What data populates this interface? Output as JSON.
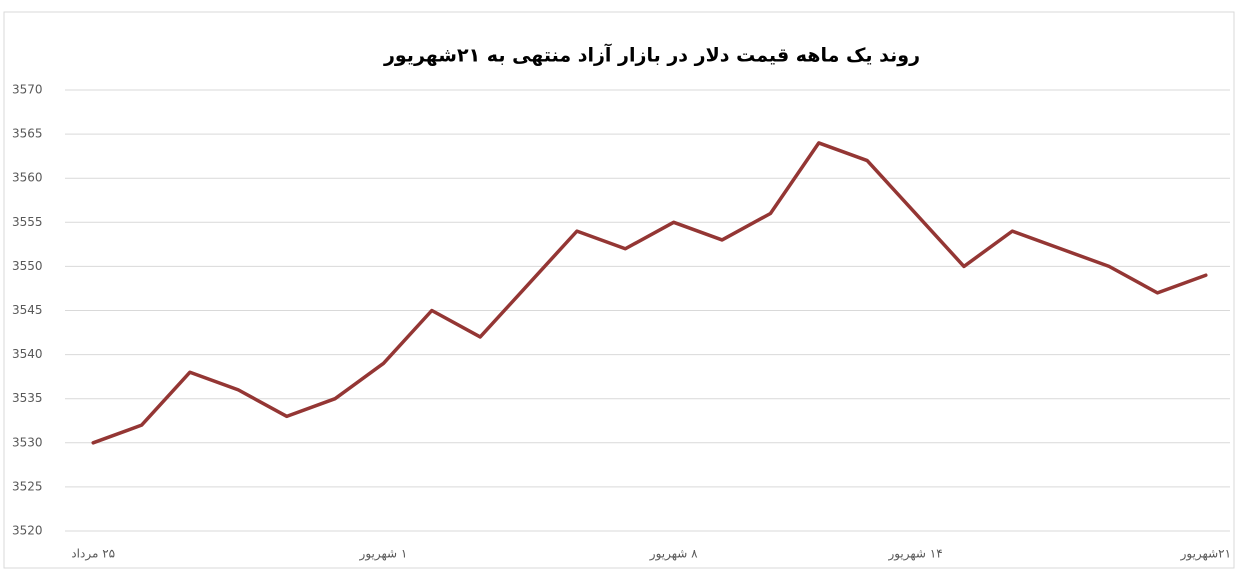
{
  "chart_data": {
    "type": "line",
    "title": "روند یک ماهه قیمت دلار در بازار آزاد منتهی به ۲۱شهریور",
    "categories": [
      "۲۵ مرداد",
      null,
      null,
      null,
      null,
      null,
      "۱ شهریور",
      null,
      null,
      null,
      null,
      null,
      "۸ شهریور",
      null,
      null,
      null,
      null,
      "۱۴ شهریور",
      null,
      null,
      null,
      null,
      null,
      "۲۱شهریور"
    ],
    "series": [
      {
        "name": "قیمت دلار",
        "color": "#943634",
        "values": [
          3530,
          3532,
          3538,
          3536,
          3533,
          3535,
          3539,
          3545,
          3542,
          3548,
          3554,
          3552,
          3555,
          3553,
          3556,
          3564,
          3562,
          3556,
          3550,
          3554,
          3552,
          3550,
          3547,
          3549
        ]
      }
    ],
    "ylim": [
      3520,
      3570
    ],
    "yticks": [
      3520,
      3525,
      3530,
      3535,
      3540,
      3545,
      3550,
      3555,
      3560,
      3565,
      3570
    ],
    "grid": true
  }
}
